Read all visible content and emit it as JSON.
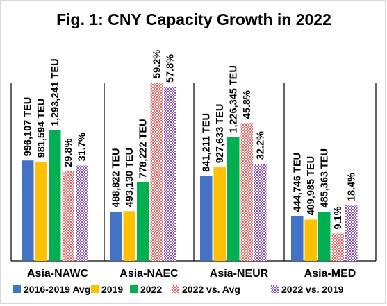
{
  "chart_data": {
    "type": "bar",
    "title": "Fig. 1: CNY Capacity Growth in 2022",
    "categories": [
      "Asia-NAWC",
      "Asia-NAEC",
      "Asia-NEUR",
      "Asia-MED"
    ],
    "series": [
      {
        "name": "2016-2019 Avg",
        "color": "#4472C4",
        "pattern": "solid",
        "values": [
          996107,
          488822,
          841211,
          444746
        ],
        "labels": [
          "996,107 TEU",
          "488,822 TEU",
          "841,211 TEU",
          "444,746 TEU"
        ]
      },
      {
        "name": "2019",
        "color": "#FFC000",
        "pattern": "solid",
        "values": [
          981594,
          493130,
          927633,
          409985
        ],
        "labels": [
          "981,594 TEU",
          "493,130 TEU",
          "927,633 TEU",
          "409,985 TEU"
        ]
      },
      {
        "name": "2022",
        "color": "#00B050",
        "pattern": "solid",
        "values": [
          1293241,
          778222,
          1226345,
          485363
        ],
        "labels": [
          "1,293,241 TEU",
          "778,222 TEU",
          "1,226,345 TEU",
          "485,363 TEU"
        ]
      },
      {
        "name": "2022 vs. Avg",
        "color": "#FF0000",
        "pattern": "checker",
        "values": [
          29.8,
          59.2,
          45.8,
          9.1
        ],
        "labels": [
          "29.8%",
          "59.2%",
          "45.8%",
          "9.1%"
        ]
      },
      {
        "name": "2022 vs. 2019",
        "color": "#7030A0",
        "pattern": "checker",
        "values": [
          31.7,
          57.8,
          32.2,
          18.4
        ],
        "labels": [
          "31.7%",
          "57.8%",
          "32.2%",
          "18.4%"
        ]
      }
    ],
    "legend_position": "bottom",
    "gridlines": false,
    "y_axis_visible": false
  }
}
